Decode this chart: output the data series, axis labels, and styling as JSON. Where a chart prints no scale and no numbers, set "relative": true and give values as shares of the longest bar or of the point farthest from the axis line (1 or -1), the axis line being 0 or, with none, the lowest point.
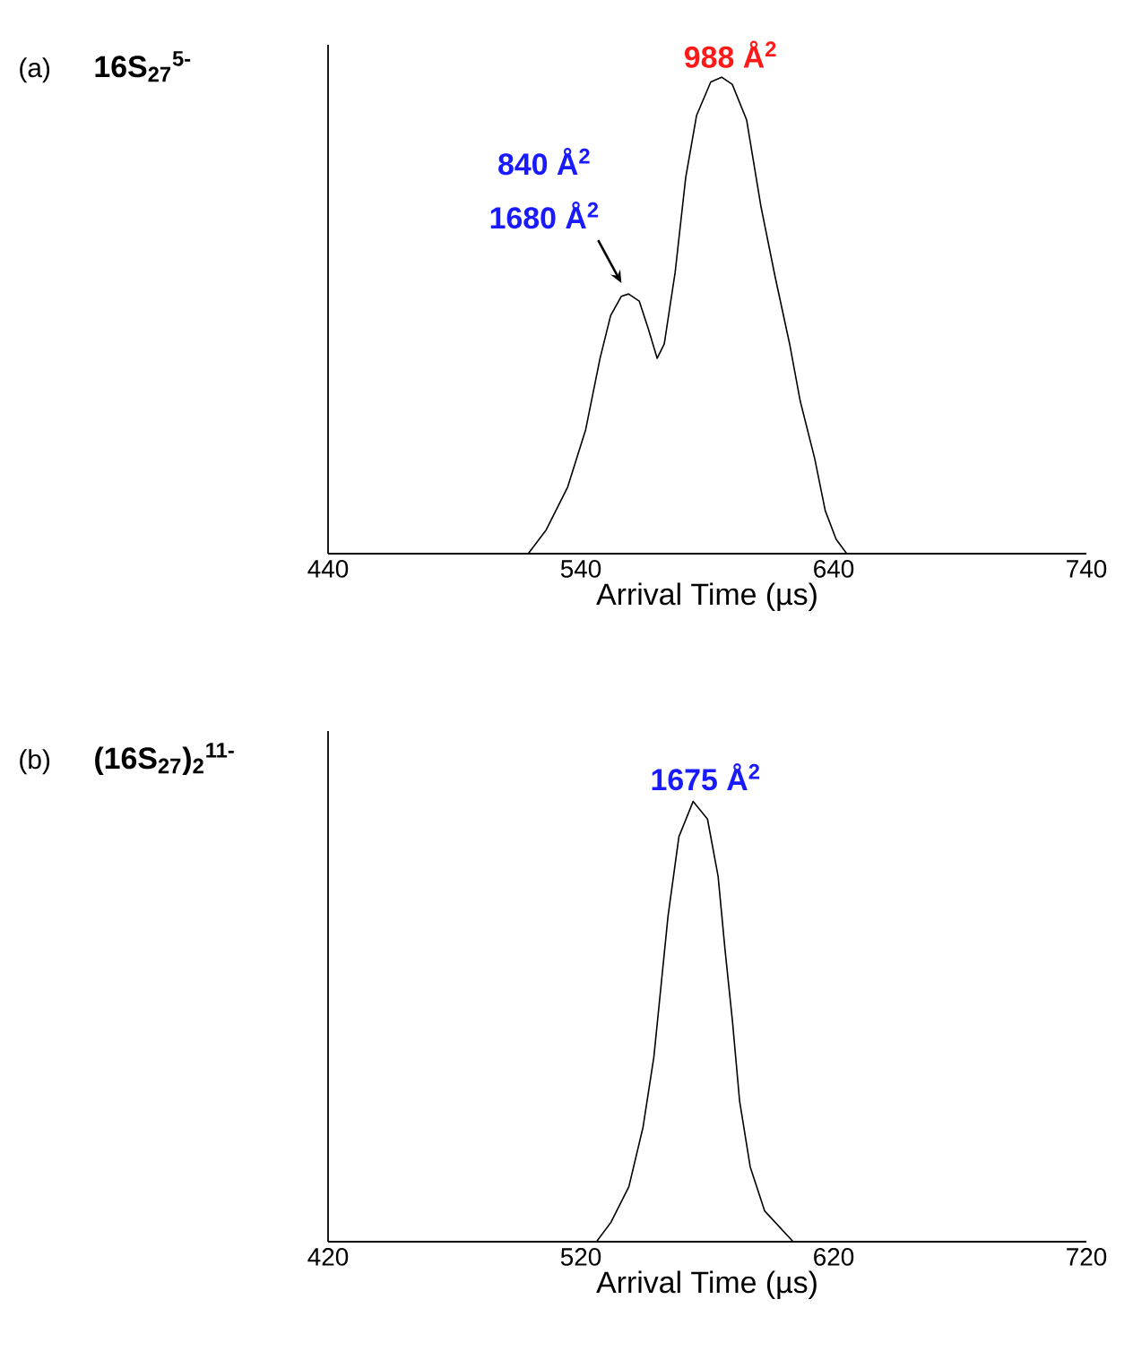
{
  "chart_data": [
    {
      "type": "line",
      "subtitle": "16S$_{27}$$^{5-}$",
      "xlabel": "Arrival Time (µs)",
      "relative": true,
      "xlim": [
        440,
        740
      ],
      "xticks": [
        440,
        540,
        640,
        740
      ],
      "tick_labels": "x",
      "grid": false,
      "marker": "none",
      "line_style": "solid",
      "x": [
        519.2,
        526.3,
        534.8,
        541.9,
        547.6,
        551.8,
        556.0,
        558.9,
        563.1,
        566.8,
        570.2,
        573.0,
        577.3,
        581.5,
        585.8,
        591.4,
        595.7,
        599.9,
        605.6,
        611.2,
        616.9,
        622.6,
        626.8,
        632.5,
        636.7,
        641.0,
        645.2
      ],
      "series": [
        {
          "color": "#000000",
          "values": [
            0,
            0.05,
            0.14,
            0.26,
            0.41,
            0.5,
            0.54,
            0.545,
            0.53,
            0.47,
            0.41,
            0.44,
            0.59,
            0.79,
            0.92,
            0.99,
            1.0,
            0.985,
            0.91,
            0.73,
            0.58,
            0.44,
            0.32,
            0.2,
            0.09,
            0.03,
            0
          ]
        }
      ],
      "annotations": [
        "840 Å$^{2}$",
        {
          "text": "1680 Å$^{2}$",
          "x": 558.9,
          "y": 0.545
        },
        {
          "text": "988 Å$^{2}$",
          "x": 595.7,
          "y": 1.0
        },
        "(a)"
      ]
    },
    {
      "type": "line",
      "subtitle": "(16S$_{27}$)$_{2}$$^{11-}$",
      "xlabel": "Arrival Time (µs)",
      "relative": true,
      "xlim": [
        420,
        720
      ],
      "xticks": [
        420,
        520,
        620,
        720
      ],
      "tick_labels": "x",
      "grid": false,
      "marker": "none",
      "line_style": "solid",
      "x": [
        526.2,
        531.9,
        539.0,
        544.6,
        548.9,
        551.7,
        554.5,
        558.8,
        564.4,
        570.1,
        574.3,
        577.1,
        580.0,
        582.8,
        587.0,
        592.7,
        604.0
      ],
      "series": [
        {
          "color": "#000000",
          "values": [
            0,
            0.044,
            0.125,
            0.26,
            0.42,
            0.58,
            0.74,
            0.92,
            1.0,
            0.96,
            0.83,
            0.66,
            0.5,
            0.32,
            0.17,
            0.07,
            0
          ]
        }
      ],
      "annotations": [
        {
          "text": "1675 Å$^{2}$",
          "x": 564.4,
          "y": 1.0
        },
        "(b)"
      ]
    }
  ]
}
